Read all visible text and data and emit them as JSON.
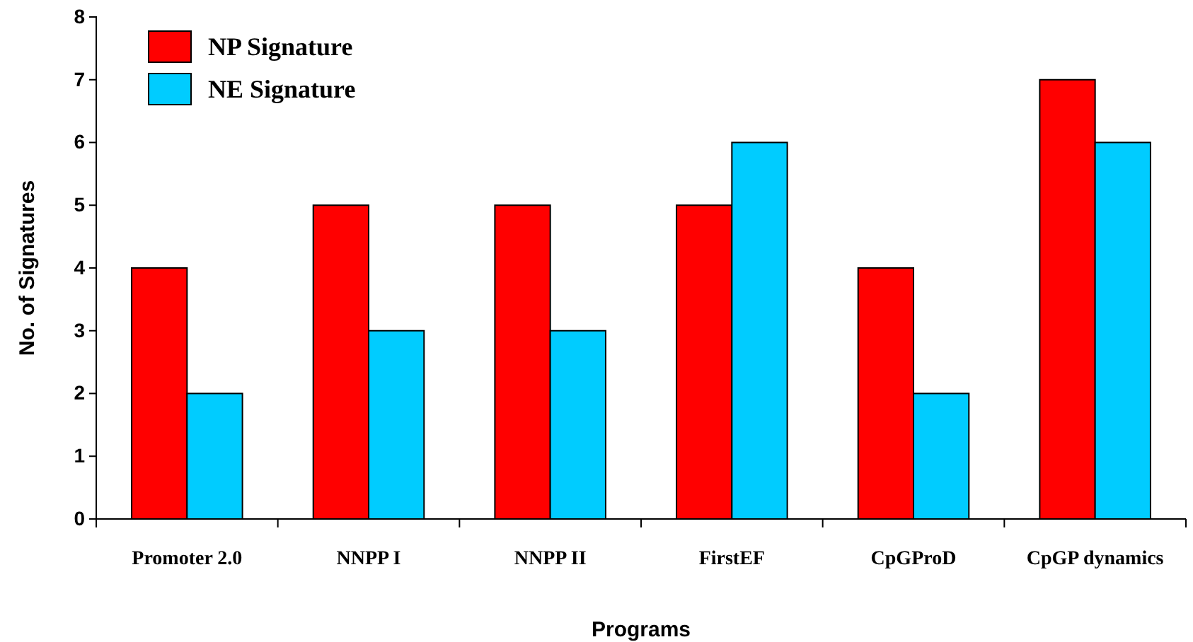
{
  "chart_data": {
    "type": "bar",
    "xlabel": "Programs",
    "ylabel": "No. of Signatures",
    "categories": [
      "Promoter 2.0",
      "NNPP I",
      "NNPP II",
      "FirstEF",
      "CpGProD",
      "CpGP dynamics"
    ],
    "series": [
      {
        "name": "NP Signature",
        "color": "#ff0000",
        "values": [
          4,
          5,
          5,
          5,
          4,
          7
        ]
      },
      {
        "name": "NE Signature",
        "color": "#00ccff",
        "values": [
          2,
          3,
          3,
          6,
          2,
          6
        ]
      }
    ],
    "ylim": [
      0,
      8
    ],
    "yticks": [
      0,
      1,
      2,
      3,
      4,
      5,
      6,
      7,
      8
    ],
    "grid": false,
    "legend": "top left"
  }
}
